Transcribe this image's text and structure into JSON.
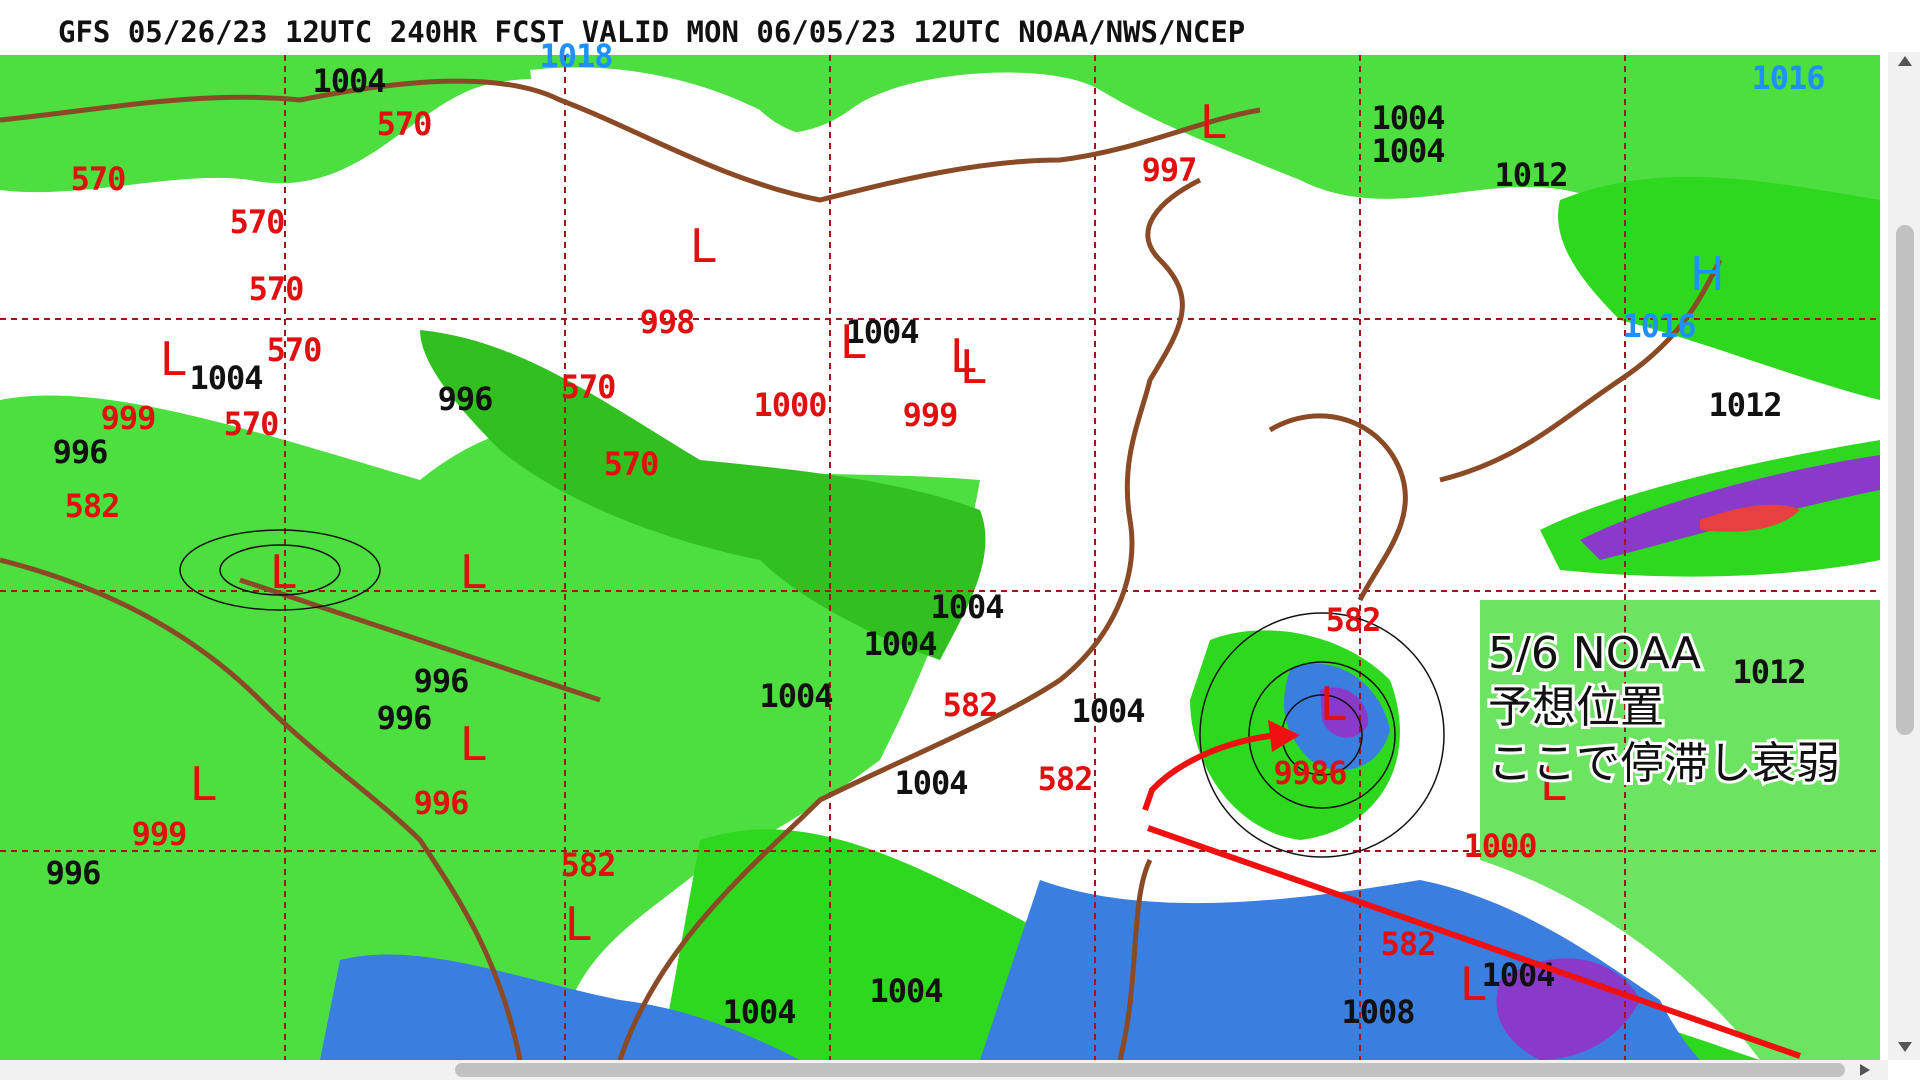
{
  "header": {
    "title": "GFS 05/26/23 12UTC 240HR FCST VALID MON 06/05/23 12UTC NOAA/NWS/NCEP"
  },
  "annotation": {
    "lines": [
      "5/6 NOAA",
      "予想位置",
      "ここで停滞し衰弱"
    ]
  },
  "map": {
    "low_symbol": "L",
    "high_symbol": "H",
    "labels": [
      "1004",
      "1018",
      "570",
      "570",
      "570",
      "570",
      "570",
      "997",
      "1004",
      "1004",
      "1012",
      "1016",
      "998",
      "1004",
      "1004",
      "996",
      "570",
      "1000",
      "999",
      "999",
      "570",
      "996",
      "1016",
      "1012",
      "582",
      "570",
      "1004",
      "1004",
      "1004",
      "582",
      "1004",
      "582",
      "1004",
      "996",
      "996",
      "996",
      "999",
      "996",
      "582",
      "1000",
      "582",
      "1004",
      "1004",
      "1004",
      "1008",
      "9986",
      "1012",
      "582"
    ]
  }
}
